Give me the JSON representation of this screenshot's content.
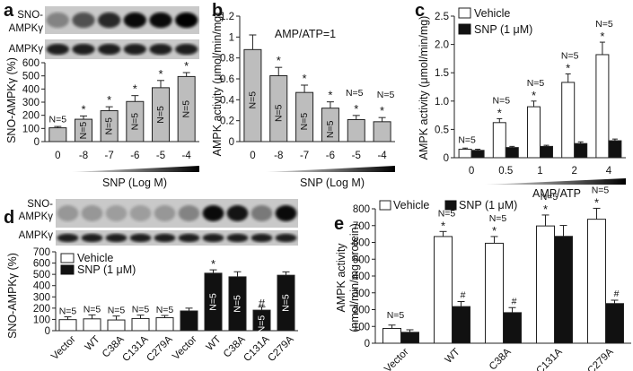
{
  "chart_data": [
    {
      "panel": "a",
      "type": "bar",
      "blot_labels": [
        "SNO-AMPKγ",
        "AMPKγ"
      ],
      "categories": [
        "0",
        "-8",
        "-7",
        "-6",
        "-5",
        "-4"
      ],
      "values": [
        105,
        170,
        235,
        305,
        410,
        495
      ],
      "errors": [
        10,
        25,
        30,
        45,
        55,
        30
      ],
      "n_labels": [
        "N=5",
        "N=5",
        "N=5",
        "N=5",
        "N=5",
        "N=5"
      ],
      "markers": [
        "",
        "*",
        "*",
        "*",
        "*",
        "*"
      ],
      "ylabel": "SNO-AMPKγ (%)",
      "xlabel": "SNP (Log M)",
      "yticks": [
        0,
        100,
        200,
        300,
        400,
        500,
        600
      ],
      "ylim": [
        0,
        600
      ]
    },
    {
      "panel": "b",
      "type": "bar",
      "title": "AMP/ATP=1",
      "categories": [
        "0",
        "-8",
        "-7",
        "-6",
        "-5",
        "-4"
      ],
      "values": [
        0.88,
        0.63,
        0.47,
        0.32,
        0.21,
        0.19
      ],
      "errors": [
        0.14,
        0.08,
        0.07,
        0.06,
        0.04,
        0.04
      ],
      "n_labels": [
        "N=5",
        "N=5",
        "N=5",
        "N=5",
        "N=5",
        "N=5"
      ],
      "markers": [
        "",
        "*",
        "*",
        "*",
        "*",
        "*"
      ],
      "ylabel": "AMPK activity (μmol/min/mg)",
      "xlabel": "SNP (Log M)",
      "yticks": [
        0,
        0.2,
        0.4,
        0.6,
        0.8,
        1.0,
        1.2
      ],
      "ylim": [
        0,
        1.2
      ]
    },
    {
      "panel": "c",
      "type": "bar",
      "categories": [
        "0",
        "0.5",
        "1",
        "2",
        "4"
      ],
      "series": [
        {
          "name": "Vehicle",
          "values": [
            0.15,
            0.62,
            0.9,
            1.33,
            1.82
          ],
          "errors": [
            0.02,
            0.07,
            0.1,
            0.15,
            0.22
          ]
        },
        {
          "name": "SNP (1 μM)",
          "values": [
            0.13,
            0.18,
            0.2,
            0.25,
            0.3
          ],
          "errors": [
            0.02,
            0.02,
            0.02,
            0.03,
            0.03
          ]
        }
      ],
      "n_labels": [
        "N=5",
        "N=5",
        "N=5",
        "N=5",
        "N=5"
      ],
      "markers": [
        "",
        "*",
        "*",
        "*",
        "*"
      ],
      "ylabel": "AMPK activity (μmol/min/mg)",
      "xlabel": "AMP/ATP",
      "yticks": [
        0,
        0.5,
        1.0,
        1.5,
        2.0,
        2.5
      ],
      "ytick_labels": [
        "0",
        "0.5",
        "1.0",
        "1.5",
        "2.0",
        "2.5"
      ],
      "ylim": [
        0,
        2.5
      ]
    },
    {
      "panel": "d",
      "type": "bar",
      "blot_labels": [
        "SNO-AMPKγ",
        "AMPKγ"
      ],
      "categories": [
        "Vector",
        "WT",
        "C38A",
        "C131A",
        "C279A",
        "Vector",
        "WT",
        "C38A",
        "C131A",
        "C279A"
      ],
      "groups": [
        "Vehicle",
        "Vehicle",
        "Vehicle",
        "Vehicle",
        "Vehicle",
        "SNP (1 μM)",
        "SNP (1 μM)",
        "SNP (1 μM)",
        "SNP (1 μM)",
        "SNP (1 μM)"
      ],
      "values": [
        98,
        105,
        95,
        108,
        115,
        175,
        510,
        478,
        182,
        492
      ],
      "errors": [
        25,
        35,
        35,
        30,
        20,
        25,
        30,
        45,
        30,
        30
      ],
      "n_labels": [
        "N=5",
        "N=5",
        "N=5",
        "N=5",
        "N=5",
        "",
        "N=5",
        "N=5",
        "N=5",
        "N=5"
      ],
      "markers": [
        "",
        "",
        "",
        "",
        "",
        "",
        "*",
        "",
        "#",
        ""
      ],
      "legend": [
        "Vehicle",
        "SNP (1 μM)"
      ],
      "ylabel": "SNO-AMPKγ (%)",
      "yticks": [
        0,
        100,
        200,
        300,
        400,
        500,
        600,
        700
      ],
      "ylim": [
        0,
        700
      ]
    },
    {
      "panel": "e",
      "type": "bar",
      "categories": [
        "Vector",
        "WT",
        "C38A",
        "C131A",
        "C279A"
      ],
      "series": [
        {
          "name": "Vehicle",
          "values": [
            88,
            635,
            595,
            698,
            738
          ],
          "errors": [
            20,
            30,
            40,
            65,
            65
          ]
        },
        {
          "name": "SNP (1 μM)",
          "values": [
            65,
            218,
            182,
            636,
            236
          ],
          "errors": [
            15,
            30,
            30,
            65,
            20
          ]
        }
      ],
      "n_labels": [
        "N=5",
        "N=5",
        "N=5",
        "N=5",
        "N=5"
      ],
      "vehicle_markers": [
        "",
        "*",
        "*",
        "*",
        "*"
      ],
      "snp_markers": [
        "",
        "#",
        "#",
        "",
        "#"
      ],
      "ylabel": "AMPK activity (nmol/min/mg protein)",
      "yticks": [
        0,
        100,
        200,
        300,
        400,
        500,
        600,
        700,
        800
      ],
      "ylim": [
        0,
        800
      ]
    }
  ],
  "panel_letters": [
    "a",
    "b",
    "c",
    "d",
    "e"
  ]
}
